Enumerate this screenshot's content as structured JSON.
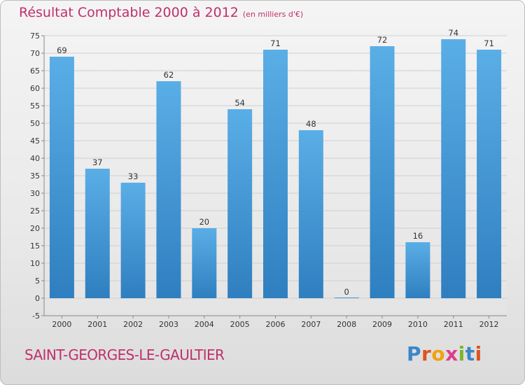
{
  "header": {
    "title": "Résultat Comptable 2000 à 2012",
    "unit": "(en milliers d'€)"
  },
  "footer": {
    "commune": "SAINT-GEORGES-LE-GAULTIER",
    "logo_text": "Proxiti"
  },
  "colors": {
    "bar": "#3d92d4",
    "title": "#c0306a"
  },
  "chart_data": {
    "type": "bar",
    "title": "Résultat Comptable 2000 à 2012",
    "subtitle": "(en milliers d'€)",
    "xlabel": "",
    "ylabel": "",
    "categories": [
      "2000",
      "2001",
      "2002",
      "2003",
      "2004",
      "2005",
      "2006",
      "2007",
      "2008",
      "2009",
      "2010",
      "2011",
      "2012"
    ],
    "values": [
      69,
      37,
      33,
      62,
      20,
      54,
      71,
      48,
      0,
      72,
      16,
      74,
      71
    ],
    "ylim": [
      -5,
      75
    ],
    "yticks": [
      -5,
      0,
      5,
      10,
      15,
      20,
      25,
      30,
      35,
      40,
      45,
      50,
      55,
      60,
      65,
      70,
      75
    ],
    "grid": true
  }
}
